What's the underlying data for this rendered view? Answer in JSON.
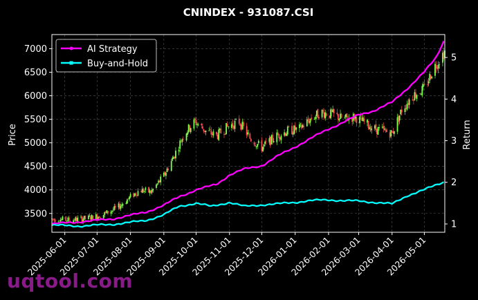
{
  "chart_data": {
    "type": "candlestick+line",
    "title": "CNINDEX - 931087.CSI",
    "ylabel_left": "Price",
    "ylabel_right": "Return",
    "ylim_left": [
      3100,
      7300
    ],
    "ylim_right": [
      0.8,
      5.55
    ],
    "left_ticks": [
      3500,
      4000,
      4500,
      5000,
      5500,
      6000,
      6500,
      7000
    ],
    "right_ticks": [
      1,
      2,
      3,
      4,
      5
    ],
    "x_start": "2025-05-20",
    "x_end": "2026-05-20",
    "x_ticks": [
      "2025-06-01",
      "2025-07-01",
      "2025-08-01",
      "2025-09-01",
      "2025-10-01",
      "2025-11-01",
      "2025-12-01",
      "2026-01-01",
      "2026-02-01",
      "2026-03-01",
      "2026-04-01",
      "2026-05-01"
    ],
    "grid": true,
    "legend_position": "top-left",
    "colors": {
      "up": "#7dff4a",
      "down": "#ff4d4d",
      "ai": "#ff00ff",
      "bh": "#00ffff",
      "grid": "#555555"
    },
    "price_series": {
      "name": "Price",
      "points": [
        [
          "2025-05-20",
          3380
        ],
        [
          "2025-06-05",
          3360
        ],
        [
          "2025-06-20",
          3390
        ],
        [
          "2025-07-05",
          3460
        ],
        [
          "2025-07-20",
          3620
        ],
        [
          "2025-08-01",
          3850
        ],
        [
          "2025-08-10",
          4000
        ],
        [
          "2025-08-20",
          3950
        ],
        [
          "2025-09-01",
          4300
        ],
        [
          "2025-09-10",
          4700
        ],
        [
          "2025-09-20",
          5200
        ],
        [
          "2025-09-30",
          5450
        ],
        [
          "2025-10-10",
          5250
        ],
        [
          "2025-10-20",
          5150
        ],
        [
          "2025-10-31",
          5350
        ],
        [
          "2025-11-10",
          5450
        ],
        [
          "2025-11-20",
          5100
        ],
        [
          "2025-12-01",
          4900
        ],
        [
          "2025-12-15",
          5150
        ],
        [
          "2025-12-25",
          5250
        ],
        [
          "2026-01-05",
          5300
        ],
        [
          "2026-01-15",
          5500
        ],
        [
          "2026-01-25",
          5650
        ],
        [
          "2026-02-05",
          5600
        ],
        [
          "2026-02-15",
          5500
        ],
        [
          "2026-02-25",
          5550
        ],
        [
          "2026-03-05",
          5450
        ],
        [
          "2026-03-15",
          5300
        ],
        [
          "2026-03-25",
          5250
        ],
        [
          "2026-04-01",
          5200
        ],
        [
          "2026-04-10",
          5700
        ],
        [
          "2026-04-20",
          6000
        ],
        [
          "2026-05-01",
          6150
        ],
        [
          "2026-05-10",
          6600
        ],
        [
          "2026-05-20",
          6950
        ]
      ]
    },
    "series": [
      {
        "name": "AI Strategy",
        "points": [
          [
            "2025-05-20",
            1.0
          ],
          [
            "2025-06-15",
            1.05
          ],
          [
            "2025-07-15",
            1.12
          ],
          [
            "2025-08-15",
            1.28
          ],
          [
            "2025-09-01",
            1.45
          ],
          [
            "2025-09-15",
            1.65
          ],
          [
            "2025-10-01",
            1.82
          ],
          [
            "2025-10-20",
            1.95
          ],
          [
            "2025-11-01",
            2.18
          ],
          [
            "2025-11-15",
            2.32
          ],
          [
            "2025-12-01",
            2.4
          ],
          [
            "2025-12-15",
            2.62
          ],
          [
            "2026-01-01",
            2.85
          ],
          [
            "2026-01-15",
            3.05
          ],
          [
            "2026-02-01",
            3.28
          ],
          [
            "2026-02-15",
            3.45
          ],
          [
            "2026-03-01",
            3.62
          ],
          [
            "2026-03-15",
            3.72
          ],
          [
            "2026-04-01",
            3.92
          ],
          [
            "2026-04-15",
            4.25
          ],
          [
            "2026-05-01",
            4.65
          ],
          [
            "2026-05-12",
            5.0
          ],
          [
            "2026-05-20",
            5.45
          ]
        ]
      },
      {
        "name": "Buy-and-Hold",
        "points": [
          [
            "2025-05-20",
            0.97
          ],
          [
            "2025-06-15",
            0.95
          ],
          [
            "2025-07-15",
            0.99
          ],
          [
            "2025-08-15",
            1.08
          ],
          [
            "2025-09-01",
            1.22
          ],
          [
            "2025-09-15",
            1.42
          ],
          [
            "2025-10-01",
            1.5
          ],
          [
            "2025-10-15",
            1.42
          ],
          [
            "2025-11-01",
            1.52
          ],
          [
            "2025-11-15",
            1.42
          ],
          [
            "2025-12-01",
            1.46
          ],
          [
            "2025-12-15",
            1.48
          ],
          [
            "2026-01-01",
            1.52
          ],
          [
            "2026-01-15",
            1.56
          ],
          [
            "2026-02-01",
            1.58
          ],
          [
            "2026-02-15",
            1.56
          ],
          [
            "2026-03-01",
            1.55
          ],
          [
            "2026-03-15",
            1.52
          ],
          [
            "2026-04-01",
            1.48
          ],
          [
            "2026-04-15",
            1.68
          ],
          [
            "2026-05-01",
            1.82
          ],
          [
            "2026-05-10",
            1.92
          ],
          [
            "2026-05-20",
            2.02
          ]
        ]
      }
    ]
  },
  "watermark": "uqtool.com"
}
